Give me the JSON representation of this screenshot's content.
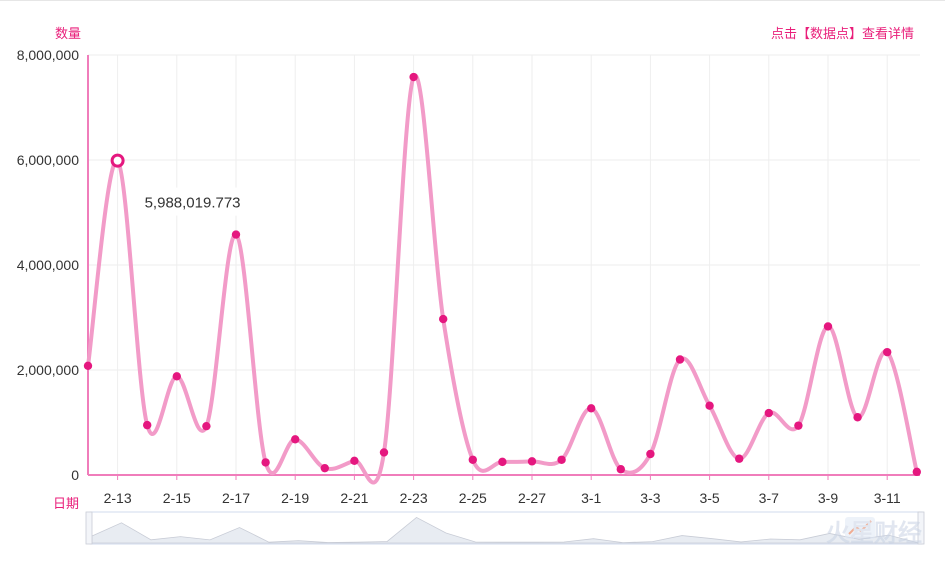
{
  "header": {
    "ylabel": "数量",
    "xlabel": "日期",
    "hint": "点击【数据点】查看详情"
  },
  "tooltip": {
    "value": "5,988,019.773"
  },
  "watermark": {
    "text": "火星财经"
  },
  "colors": {
    "line": "#f29bc8",
    "point": "#e5177f",
    "axis": "#f07dbb",
    "label_accent": "#e91e7a",
    "grid": "#eeeeee",
    "tick_text": "#333333"
  },
  "chart_data": {
    "type": "line",
    "xlabel": "日期",
    "ylabel": "数量",
    "ylim": [
      0,
      8000000
    ],
    "y_ticks": [
      0,
      2000000,
      4000000,
      6000000,
      8000000
    ],
    "y_tick_labels": [
      "0",
      "2,000,000",
      "4,000,000",
      "6,000,000",
      "8,000,000"
    ],
    "x_tick_labels": [
      "2-13",
      "2-15",
      "2-17",
      "2-19",
      "2-21",
      "2-23",
      "2-25",
      "2-27",
      "3-1",
      "3-3",
      "3-5",
      "3-7",
      "3-9",
      "3-11"
    ],
    "x": [
      "2-12",
      "2-13",
      "2-14",
      "2-15",
      "2-16",
      "2-17",
      "2-18",
      "2-19",
      "2-20",
      "2-21",
      "2-22",
      "2-23",
      "2-24",
      "2-25",
      "2-26",
      "2-27",
      "2-28",
      "3-1",
      "3-2",
      "3-3",
      "3-4",
      "3-5",
      "3-6",
      "3-7",
      "3-8",
      "3-9",
      "3-10",
      "3-11",
      "3-12"
    ],
    "values": [
      2080000,
      5988019.773,
      950000,
      1880000,
      930000,
      4580000,
      240000,
      680000,
      130000,
      270000,
      430000,
      7580000,
      2970000,
      290000,
      250000,
      260000,
      290000,
      1270000,
      110000,
      400000,
      2200000,
      1320000,
      310000,
      1180000,
      940000,
      2830000,
      1100000,
      2340000,
      60000
    ],
    "highlighted_index": 1,
    "grid": true,
    "has_zoom_slider": true
  }
}
